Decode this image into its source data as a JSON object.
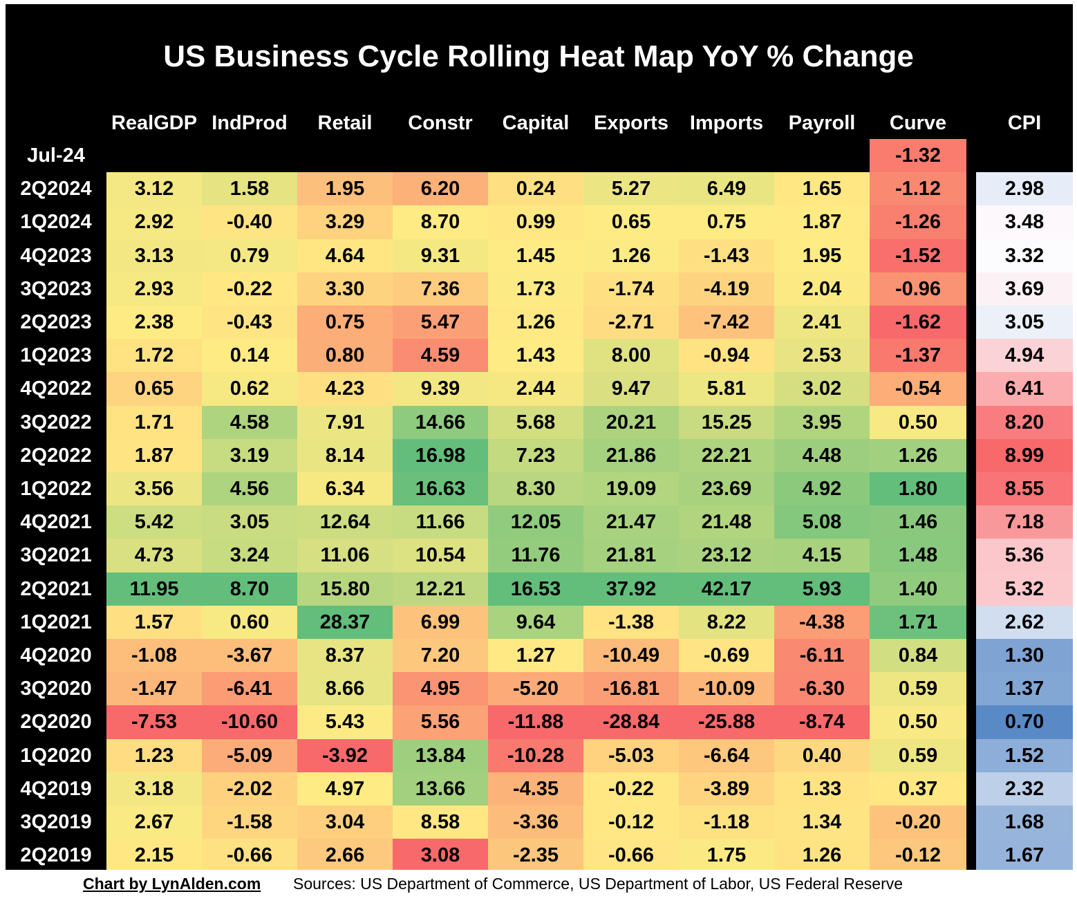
{
  "chart_data": {
    "type": "heatmap",
    "title": "US Business Cycle Rolling Heat Map YoY % Change",
    "columns": [
      "RealGDP",
      "IndProd",
      "Retail",
      "Constr",
      "Capital",
      "Exports",
      "Imports",
      "Payroll",
      "Curve",
      "CPI"
    ],
    "rows": [
      "Jul-24",
      "2Q2024",
      "1Q2024",
      "4Q2023",
      "3Q2023",
      "2Q2023",
      "1Q2023",
      "4Q2022",
      "3Q2022",
      "2Q2022",
      "1Q2022",
      "4Q2021",
      "3Q2021",
      "2Q2021",
      "1Q2021",
      "4Q2020",
      "3Q2020",
      "2Q2020",
      "1Q2020",
      "4Q2019",
      "3Q2019",
      "2Q2019"
    ],
    "values": [
      [
        null,
        null,
        null,
        null,
        null,
        null,
        null,
        null,
        "-1.32",
        null
      ],
      [
        "3.12",
        "1.58",
        "1.95",
        "6.20",
        "0.24",
        "5.27",
        "6.49",
        "1.65",
        "-1.12",
        "2.98"
      ],
      [
        "2.92",
        "-0.40",
        "3.29",
        "8.70",
        "0.99",
        "0.65",
        "0.75",
        "1.87",
        "-1.26",
        "3.48"
      ],
      [
        "3.13",
        "0.79",
        "4.64",
        "9.31",
        "1.45",
        "1.26",
        "-1.43",
        "1.95",
        "-1.52",
        "3.32"
      ],
      [
        "2.93",
        "-0.22",
        "3.30",
        "7.36",
        "1.73",
        "-1.74",
        "-4.19",
        "2.04",
        "-0.96",
        "3.69"
      ],
      [
        "2.38",
        "-0.43",
        "0.75",
        "5.47",
        "1.26",
        "-2.71",
        "-7.42",
        "2.41",
        "-1.62",
        "3.05"
      ],
      [
        "1.72",
        "0.14",
        "0.80",
        "4.59",
        "1.43",
        "8.00",
        "-0.94",
        "2.53",
        "-1.37",
        "4.94"
      ],
      [
        "0.65",
        "0.62",
        "4.23",
        "9.39",
        "2.44",
        "9.47",
        "5.81",
        "3.02",
        "-0.54",
        "6.41"
      ],
      [
        "1.71",
        "4.58",
        "7.91",
        "14.66",
        "5.68",
        "20.21",
        "15.25",
        "3.95",
        "0.50",
        "8.20"
      ],
      [
        "1.87",
        "3.19",
        "8.14",
        "16.98",
        "7.23",
        "21.86",
        "22.21",
        "4.48",
        "1.26",
        "8.99"
      ],
      [
        "3.56",
        "4.56",
        "6.34",
        "16.63",
        "8.30",
        "19.09",
        "23.69",
        "4.92",
        "1.80",
        "8.55"
      ],
      [
        "5.42",
        "3.05",
        "12.64",
        "11.66",
        "12.05",
        "21.47",
        "21.48",
        "5.08",
        "1.46",
        "7.18"
      ],
      [
        "4.73",
        "3.24",
        "11.06",
        "10.54",
        "11.76",
        "21.81",
        "23.12",
        "4.15",
        "1.48",
        "5.36"
      ],
      [
        "11.95",
        "8.70",
        "15.80",
        "12.21",
        "16.53",
        "37.92",
        "42.17",
        "5.93",
        "1.40",
        "5.32"
      ],
      [
        "1.57",
        "0.60",
        "28.37",
        "6.99",
        "9.64",
        "-1.38",
        "8.22",
        "-4.38",
        "1.71",
        "2.62"
      ],
      [
        "-1.08",
        "-3.67",
        "8.37",
        "7.20",
        "1.27",
        "-10.49",
        "-0.69",
        "-6.11",
        "0.84",
        "1.30"
      ],
      [
        "-1.47",
        "-6.41",
        "8.66",
        "4.95",
        "-5.20",
        "-16.81",
        "-10.09",
        "-6.30",
        "0.59",
        "1.37"
      ],
      [
        "-7.53",
        "-10.60",
        "5.43",
        "5.56",
        "-11.88",
        "-28.84",
        "-25.88",
        "-8.74",
        "0.50",
        "0.70"
      ],
      [
        "1.23",
        "-5.09",
        "-3.92",
        "13.84",
        "-10.28",
        "-5.03",
        "-6.64",
        "0.40",
        "0.59",
        "1.52"
      ],
      [
        "3.18",
        "-2.02",
        "4.97",
        "13.66",
        "-4.35",
        "-0.22",
        "-3.89",
        "1.33",
        "0.37",
        "2.32"
      ],
      [
        "2.67",
        "-1.58",
        "3.04",
        "8.58",
        "-3.36",
        "-0.12",
        "-1.18",
        "1.34",
        "-0.20",
        "1.68"
      ],
      [
        "2.15",
        "-0.66",
        "2.66",
        "3.08",
        "-2.35",
        "-0.66",
        "1.75",
        "1.26",
        "-0.12",
        "1.67"
      ]
    ],
    "color_scale": {
      "main": {
        "low": "#f8696b",
        "mid": "#ffeb84",
        "high": "#63be7b"
      },
      "cpi": {
        "low": "#5a8ac6",
        "mid": "#fcfcff",
        "high": "#f8696b"
      }
    },
    "colors": {
      "background": "#000000",
      "title_text": "#ffffff",
      "cell_text": "#000000"
    }
  },
  "footer": {
    "credit": "Chart by LynAlden.com",
    "sources": "Sources: US Department of Commerce, US Department of Labor, US Federal Reserve"
  }
}
